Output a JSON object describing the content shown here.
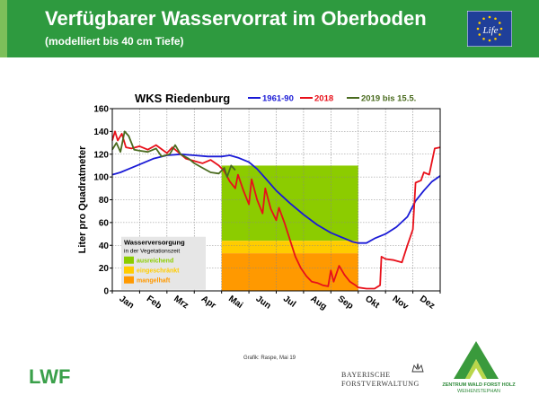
{
  "header": {
    "title": "Verfügbarer Wasservorrat im Oberboden",
    "subtitle": "(modelliert bis 40 cm Tiefe)",
    "logo": "eu-life-logo",
    "logo_text": "Life",
    "color": "#2e9a3f"
  },
  "chart_data": {
    "type": "line",
    "title": "WKS Riedenburg",
    "ylabel": "Liter pro Quadratmeter",
    "ylim": [
      0,
      160
    ],
    "yticks": [
      0,
      20,
      40,
      60,
      80,
      100,
      120,
      140,
      160
    ],
    "months": [
      "Jan",
      "Feb",
      "Mrz",
      "Apr",
      "Mai",
      "Jun",
      "Jul",
      "Aug",
      "Sep",
      "Okt",
      "Nov",
      "Dez"
    ],
    "grid": true,
    "legend_position": "top",
    "series": [
      {
        "name": "1961-90",
        "color": "#1a1ad6",
        "points": [
          [
            0,
            102
          ],
          [
            0.3,
            104
          ],
          [
            0.6,
            107
          ],
          [
            1,
            111
          ],
          [
            1.5,
            116
          ],
          [
            2,
            119
          ],
          [
            2.5,
            120
          ],
          [
            3,
            119
          ],
          [
            3.5,
            118
          ],
          [
            4,
            118
          ],
          [
            4.3,
            119
          ],
          [
            4.6,
            117
          ],
          [
            5,
            113
          ],
          [
            5.3,
            107
          ],
          [
            5.6,
            99
          ],
          [
            6,
            88
          ],
          [
            6.5,
            77
          ],
          [
            7,
            67
          ],
          [
            7.5,
            58
          ],
          [
            8,
            51
          ],
          [
            8.5,
            46
          ],
          [
            8.8,
            43
          ],
          [
            9,
            42
          ],
          [
            9.3,
            42
          ],
          [
            9.6,
            46
          ],
          [
            10,
            50
          ],
          [
            10.4,
            56
          ],
          [
            10.8,
            65
          ],
          [
            11.1,
            79
          ],
          [
            11.4,
            88
          ],
          [
            11.7,
            96
          ],
          [
            12,
            101
          ]
        ]
      },
      {
        "name": "2018",
        "color": "#e8101a",
        "points": [
          [
            0,
            132
          ],
          [
            0.1,
            140
          ],
          [
            0.2,
            132
          ],
          [
            0.35,
            138
          ],
          [
            0.5,
            126
          ],
          [
            0.7,
            125
          ],
          [
            1,
            127
          ],
          [
            1.3,
            124
          ],
          [
            1.6,
            128
          ],
          [
            2,
            121
          ],
          [
            2.2,
            126
          ],
          [
            2.4,
            122
          ],
          [
            2.7,
            116
          ],
          [
            3,
            114
          ],
          [
            3.3,
            112
          ],
          [
            3.6,
            115
          ],
          [
            3.9,
            110
          ],
          [
            4.1,
            105
          ],
          [
            4.3,
            96
          ],
          [
            4.5,
            90
          ],
          [
            4.6,
            102
          ],
          [
            4.8,
            88
          ],
          [
            5,
            76
          ],
          [
            5.1,
            98
          ],
          [
            5.3,
            80
          ],
          [
            5.5,
            68
          ],
          [
            5.6,
            90
          ],
          [
            5.8,
            72
          ],
          [
            6,
            62
          ],
          [
            6.1,
            73
          ],
          [
            6.3,
            60
          ],
          [
            6.5,
            45
          ],
          [
            6.7,
            30
          ],
          [
            6.9,
            20
          ],
          [
            7.1,
            13
          ],
          [
            7.3,
            8
          ],
          [
            7.5,
            7
          ],
          [
            7.7,
            5
          ],
          [
            7.9,
            4
          ],
          [
            8,
            18
          ],
          [
            8.1,
            8
          ],
          [
            8.3,
            22
          ],
          [
            8.5,
            14
          ],
          [
            8.7,
            8
          ],
          [
            8.9,
            5
          ],
          [
            9,
            3
          ],
          [
            9.3,
            2
          ],
          [
            9.6,
            2
          ],
          [
            9.8,
            5
          ],
          [
            9.85,
            30
          ],
          [
            10,
            28
          ],
          [
            10.3,
            27
          ],
          [
            10.6,
            25
          ],
          [
            10.8,
            40
          ],
          [
            11,
            54
          ],
          [
            11.1,
            95
          ],
          [
            11.3,
            97
          ],
          [
            11.4,
            104
          ],
          [
            11.6,
            102
          ],
          [
            11.8,
            125
          ],
          [
            12,
            126
          ]
        ]
      },
      {
        "name": "2019 bis 15.5.",
        "color": "#4a6b1f",
        "points": [
          [
            0,
            124
          ],
          [
            0.15,
            130
          ],
          [
            0.3,
            122
          ],
          [
            0.45,
            140
          ],
          [
            0.6,
            136
          ],
          [
            0.8,
            124
          ],
          [
            1,
            123
          ],
          [
            1.3,
            122
          ],
          [
            1.6,
            125
          ],
          [
            1.8,
            118
          ],
          [
            2.1,
            120
          ],
          [
            2.3,
            128
          ],
          [
            2.5,
            120
          ],
          [
            2.8,
            116
          ],
          [
            3,
            112
          ],
          [
            3.3,
            108
          ],
          [
            3.6,
            104
          ],
          [
            3.9,
            103
          ],
          [
            4.1,
            108
          ],
          [
            4.2,
            100
          ],
          [
            4.35,
            110
          ],
          [
            4.5,
            106
          ]
        ]
      }
    ],
    "zones": {
      "title": "Wasserversorgung",
      "subtitle": "in der Vegetationszeit",
      "items": [
        {
          "label": "ausreichend",
          "color": "#8ccc00",
          "from": 44,
          "to": 110
        },
        {
          "label": "eingeschränkt",
          "color": "#ffcc00",
          "from": 33,
          "to": 44
        },
        {
          "label": "mangelhaft",
          "color": "#ff9900",
          "from": 0,
          "to": 33
        }
      ]
    }
  },
  "credit": "Grafik: Raspe, Mai 19",
  "footer": {
    "lwf": "LWF",
    "bayern_line1": "BAYERISCHE",
    "bayern_line2": "FORSTVERWALTUNG",
    "zentrum_line1": "ZENTRUM WALD FORST HOLZ",
    "zentrum_line2": "WEIHENSTEPHAN"
  }
}
